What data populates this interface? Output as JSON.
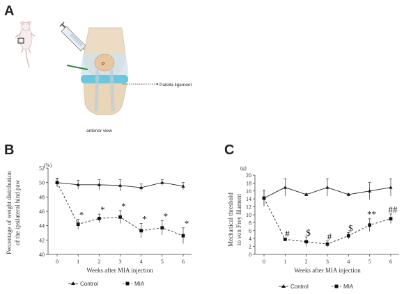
{
  "panels": {
    "a": "A",
    "b": "B",
    "c": "C"
  },
  "illustration": {
    "patella": "P",
    "patella_ligament": "Patella ligament",
    "view": "anterior view"
  },
  "chart_data": [
    {
      "type": "line",
      "panel": "B",
      "x": [
        0,
        1,
        2,
        3,
        4,
        5,
        6
      ],
      "xlabel": "Weeks after MIA injection",
      "ylabel": [
        "Percentage of weight distribution",
        "of the ipsilateral hind paw"
      ],
      "unit": "(%)",
      "ylim": [
        40,
        52
      ],
      "yticks": [
        40,
        42,
        44,
        46,
        48,
        50,
        52
      ],
      "series": [
        {
          "name": "Control",
          "values": [
            50.0,
            49.7,
            49.7,
            49.6,
            49.3,
            50.0,
            49.5
          ],
          "err": [
            0.6,
            0.6,
            0.7,
            0.8,
            0.5,
            0.4,
            0.5
          ],
          "style": "solid",
          "marker": "triangle"
        },
        {
          "name": "MIA",
          "values": [
            50.0,
            44.2,
            45.0,
            45.2,
            43.3,
            43.7,
            42.6
          ],
          "err": [
            0.6,
            0.7,
            0.6,
            0.9,
            1.0,
            1.0,
            1.1
          ],
          "style": "dashed",
          "marker": "square"
        }
      ],
      "annotations": [
        "",
        "*",
        "*",
        "*",
        "*",
        "*",
        "*"
      ],
      "legend_placement": "bottom"
    },
    {
      "type": "line",
      "panel": "C",
      "x": [
        0,
        1,
        2,
        3,
        4,
        5,
        6
      ],
      "xlabel": "Weeks after MIA injection",
      "ylabel": [
        "Mechanical threshold",
        "to von Frey filament"
      ],
      "unit": "(g)",
      "ylim": [
        0,
        20
      ],
      "yticks": [
        0,
        2,
        4,
        6,
        8,
        10,
        12,
        14,
        16,
        18,
        20
      ],
      "series": [
        {
          "name": "Control",
          "values": [
            14.2,
            16.9,
            15.1,
            16.9,
            15.1,
            16.0,
            16.9
          ],
          "err": [
            2.0,
            2.2,
            0.3,
            2.2,
            0.3,
            2.2,
            2.2
          ],
          "style": "solid",
          "marker": "triangle"
        },
        {
          "name": "MIA",
          "values": [
            14.2,
            3.8,
            3.2,
            2.6,
            4.7,
            7.4,
            9.0
          ],
          "err": [
            2.0,
            0.3,
            1.2,
            0.8,
            0.8,
            1.6,
            1.2
          ],
          "style": "dashed",
          "marker": "square"
        }
      ],
      "annotations": [
        "",
        "#",
        "$",
        "#",
        "$",
        "**",
        "##"
      ],
      "legend_placement": "bottom"
    }
  ]
}
